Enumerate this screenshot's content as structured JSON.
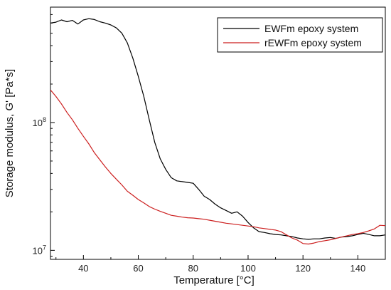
{
  "chart_data": {
    "type": "line",
    "title": "",
    "xlabel": "Temperature [°C]",
    "ylabel": "Storage modulus, G' [Pa*s]",
    "xlim": [
      28,
      150
    ],
    "ylim": [
      8500000,
      800000000
    ],
    "yscale": "log",
    "x_ticks": [
      {
        "value": 40,
        "label": "40"
      },
      {
        "value": 60,
        "label": "60"
      },
      {
        "value": 80,
        "label": "80"
      },
      {
        "value": 100,
        "label": "100"
      },
      {
        "value": 120,
        "label": "120"
      },
      {
        "value": 140,
        "label": "140"
      }
    ],
    "y_ticks": [
      {
        "value": 10000000,
        "base": "10",
        "exp": "7"
      },
      {
        "value": 100000000,
        "base": "10",
        "exp": "8"
      }
    ],
    "grid": false,
    "legend_position": "top-right",
    "series": [
      {
        "name": "EWFm epoxy system",
        "color": "#000000",
        "x": [
          28,
          30,
          32,
          34,
          36,
          38,
          40,
          42,
          44,
          46,
          48,
          50,
          52,
          54,
          56,
          58,
          60,
          62,
          64,
          66,
          68,
          70,
          72,
          74,
          76,
          78,
          80,
          82,
          84,
          86,
          88,
          90,
          92,
          94,
          96,
          98,
          100,
          102,
          104,
          106,
          108,
          110,
          112,
          114,
          116,
          118,
          120,
          122,
          124,
          126,
          128,
          130,
          132,
          134,
          136,
          138,
          140,
          142,
          144,
          146,
          148,
          150
        ],
        "y": [
          600000000,
          610000000,
          635000000,
          615000000,
          630000000,
          590000000,
          635000000,
          650000000,
          640000000,
          615000000,
          600000000,
          580000000,
          550000000,
          500000000,
          420000000,
          320000000,
          230000000,
          160000000,
          105000000,
          70000000,
          52000000,
          43000000,
          37000000,
          35000000,
          34500000,
          34000000,
          33500000,
          30000000,
          26500000,
          25000000,
          23000000,
          21500000,
          20500000,
          19500000,
          20000000,
          18500000,
          16500000,
          15000000,
          14000000,
          13800000,
          13500000,
          13300000,
          13200000,
          13000000,
          12800000,
          12500000,
          12300000,
          12200000,
          12300000,
          12300000,
          12500000,
          12600000,
          12400000,
          12700000,
          12800000,
          13000000,
          13300000,
          13600000,
          13300000,
          13000000,
          13000000,
          13200000
        ]
      },
      {
        "name": "rEWFm epoxy system",
        "color": "#cc1f1f",
        "x": [
          28,
          30,
          32,
          34,
          36,
          38,
          40,
          42,
          44,
          46,
          48,
          50,
          52,
          54,
          56,
          58,
          60,
          62,
          64,
          66,
          68,
          70,
          72,
          74,
          76,
          78,
          80,
          82,
          84,
          86,
          88,
          90,
          92,
          94,
          96,
          98,
          100,
          102,
          104,
          106,
          108,
          110,
          112,
          114,
          116,
          118,
          120,
          122,
          124,
          126,
          128,
          130,
          132,
          134,
          136,
          138,
          140,
          142,
          144,
          146,
          148,
          150
        ],
        "y": [
          180000000,
          160000000,
          140000000,
          120000000,
          105000000,
          90000000,
          78000000,
          68000000,
          58000000,
          51000000,
          45000000,
          40000000,
          36000000,
          32500000,
          29000000,
          27000000,
          25000000,
          23500000,
          22000000,
          21000000,
          20200000,
          19500000,
          18800000,
          18500000,
          18200000,
          18000000,
          17900000,
          17700000,
          17500000,
          17200000,
          16900000,
          16600000,
          16300000,
          16100000,
          15900000,
          15700000,
          15500000,
          15300000,
          15000000,
          14800000,
          14600000,
          14400000,
          14000000,
          13200000,
          12500000,
          12000000,
          11300000,
          11200000,
          11400000,
          11700000,
          11900000,
          12100000,
          12400000,
          12700000,
          13000000,
          13300000,
          13500000,
          13800000,
          14200000,
          14700000,
          15700000,
          15600000
        ]
      }
    ]
  }
}
